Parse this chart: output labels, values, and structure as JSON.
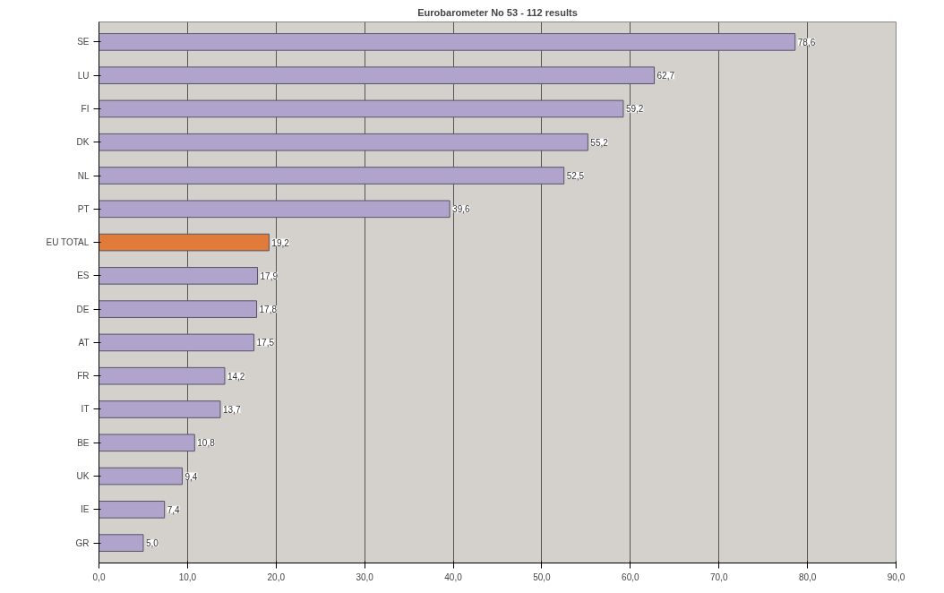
{
  "chart_data": {
    "type": "bar",
    "orientation": "horizontal",
    "title": "Eurobarometer No 53 - 112 results",
    "categories": [
      "SE",
      "LU",
      "FI",
      "DK",
      "NL",
      "PT",
      "EU TOTAL",
      "ES",
      "DE",
      "AT",
      "FR",
      "IT",
      "BE",
      "UK",
      "IE",
      "GR"
    ],
    "values": [
      78.6,
      62.7,
      59.2,
      55.2,
      52.5,
      39.6,
      19.2,
      17.9,
      17.8,
      17.5,
      14.2,
      13.7,
      10.8,
      9.4,
      7.4,
      5.0
    ],
    "value_labels": [
      "78,6",
      "62,7",
      "59,2",
      "55,2",
      "52,5",
      "39,6",
      "19,2",
      "17,9",
      "17,8",
      "17,5",
      "14,2",
      "13,7",
      "10,8",
      "9,4",
      "7,4",
      "5,0"
    ],
    "colors": [
      "#b0a4cc",
      "#b0a4cc",
      "#b0a4cc",
      "#b0a4cc",
      "#b0a4cc",
      "#b0a4cc",
      "#e07b39",
      "#b0a4cc",
      "#b0a4cc",
      "#b0a4cc",
      "#b0a4cc",
      "#b0a4cc",
      "#b0a4cc",
      "#b0a4cc",
      "#b0a4cc",
      "#b0a4cc"
    ],
    "xlim": [
      0,
      90
    ],
    "xticks": [
      {
        "value": 0,
        "label": "0,0"
      },
      {
        "value": 10,
        "label": "10,0"
      },
      {
        "value": 20,
        "label": "20,0"
      },
      {
        "value": 30,
        "label": "30,0"
      },
      {
        "value": 40,
        "label": "40,0"
      },
      {
        "value": 50,
        "label": "50,0"
      },
      {
        "value": 60,
        "label": "60,0"
      },
      {
        "value": 70,
        "label": "70,0"
      },
      {
        "value": 80,
        "label": "80,0"
      },
      {
        "value": 90,
        "label": "90,0"
      }
    ],
    "grid": "x"
  }
}
